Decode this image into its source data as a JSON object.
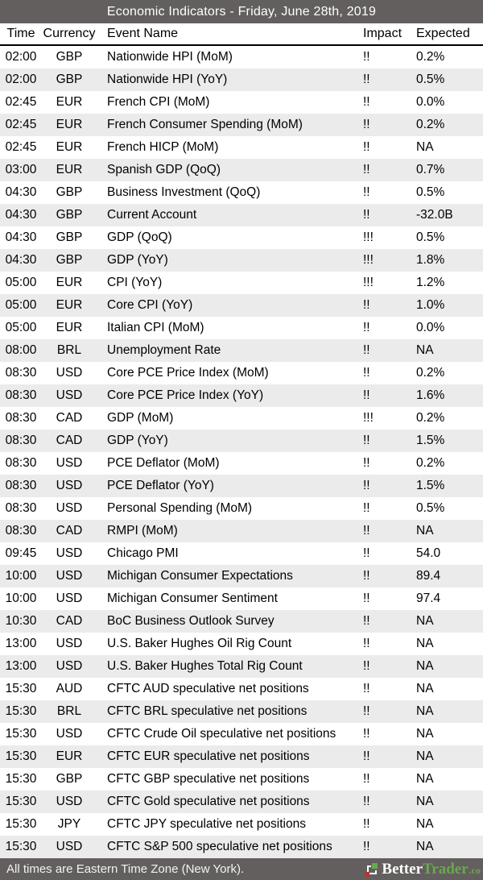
{
  "title_bar": {
    "title": "Economic Indicators - Friday, June 28th, 2019"
  },
  "table": {
    "columns": [
      "Time",
      "Currency",
      "Event Name",
      "Impact",
      "Expected"
    ],
    "rows": [
      {
        "time": "02:00",
        "currency": "GBP",
        "event": "Nationwide HPI (MoM)",
        "impact": "!!",
        "expected": "0.2%"
      },
      {
        "time": "02:00",
        "currency": "GBP",
        "event": "Nationwide HPI (YoY)",
        "impact": "!!",
        "expected": "0.5%"
      },
      {
        "time": "02:45",
        "currency": "EUR",
        "event": "French CPI (MoM)",
        "impact": "!!",
        "expected": "0.0%"
      },
      {
        "time": "02:45",
        "currency": "EUR",
        "event": "French Consumer Spending (MoM)",
        "impact": "!!",
        "expected": "0.2%"
      },
      {
        "time": "02:45",
        "currency": "EUR",
        "event": "French HICP (MoM)",
        "impact": "!!",
        "expected": "NA"
      },
      {
        "time": "03:00",
        "currency": "EUR",
        "event": "Spanish GDP (QoQ)",
        "impact": "!!",
        "expected": "0.7%"
      },
      {
        "time": "04:30",
        "currency": "GBP",
        "event": "Business Investment (QoQ)",
        "impact": "!!",
        "expected": "0.5%"
      },
      {
        "time": "04:30",
        "currency": "GBP",
        "event": "Current Account",
        "impact": "!!",
        "expected": "-32.0B"
      },
      {
        "time": "04:30",
        "currency": "GBP",
        "event": "GDP (QoQ)",
        "impact": "!!!",
        "expected": "0.5%"
      },
      {
        "time": "04:30",
        "currency": "GBP",
        "event": "GDP (YoY)",
        "impact": "!!!",
        "expected": "1.8%"
      },
      {
        "time": "05:00",
        "currency": "EUR",
        "event": "CPI (YoY)",
        "impact": "!!!",
        "expected": "1.2%"
      },
      {
        "time": "05:00",
        "currency": "EUR",
        "event": "Core CPI (YoY)",
        "impact": "!!",
        "expected": "1.0%"
      },
      {
        "time": "05:00",
        "currency": "EUR",
        "event": "Italian CPI (MoM)",
        "impact": "!!",
        "expected": "0.0%"
      },
      {
        "time": "08:00",
        "currency": "BRL",
        "event": "Unemployment Rate",
        "impact": "!!",
        "expected": "NA"
      },
      {
        "time": "08:30",
        "currency": "USD",
        "event": "Core PCE Price Index (MoM)",
        "impact": "!!",
        "expected": "0.2%"
      },
      {
        "time": "08:30",
        "currency": "USD",
        "event": "Core PCE Price Index (YoY)",
        "impact": "!!",
        "expected": "1.6%"
      },
      {
        "time": "08:30",
        "currency": "CAD",
        "event": "GDP (MoM)",
        "impact": "!!!",
        "expected": "0.2%"
      },
      {
        "time": "08:30",
        "currency": "CAD",
        "event": "GDP (YoY)",
        "impact": "!!",
        "expected": "1.5%"
      },
      {
        "time": "08:30",
        "currency": "USD",
        "event": "PCE Deflator (MoM)",
        "impact": "!!",
        "expected": "0.2%"
      },
      {
        "time": "08:30",
        "currency": "USD",
        "event": "PCE Deflator (YoY)",
        "impact": "!!",
        "expected": "1.5%"
      },
      {
        "time": "08:30",
        "currency": "USD",
        "event": "Personal Spending (MoM)",
        "impact": "!!",
        "expected": "0.5%"
      },
      {
        "time": "08:30",
        "currency": "CAD",
        "event": "RMPI (MoM)",
        "impact": "!!",
        "expected": "NA"
      },
      {
        "time": "09:45",
        "currency": "USD",
        "event": "Chicago PMI",
        "impact": "!!",
        "expected": "54.0"
      },
      {
        "time": "10:00",
        "currency": "USD",
        "event": "Michigan Consumer Expectations",
        "impact": "!!",
        "expected": "89.4"
      },
      {
        "time": "10:00",
        "currency": "USD",
        "event": "Michigan Consumer Sentiment",
        "impact": "!!",
        "expected": "97.4"
      },
      {
        "time": "10:30",
        "currency": "CAD",
        "event": "BoC Business Outlook Survey",
        "impact": "!!",
        "expected": "NA"
      },
      {
        "time": "13:00",
        "currency": "USD",
        "event": "U.S. Baker Hughes Oil Rig Count",
        "impact": "!!",
        "expected": "NA"
      },
      {
        "time": "13:00",
        "currency": "USD",
        "event": "U.S. Baker Hughes Total Rig Count",
        "impact": "!!",
        "expected": "NA"
      },
      {
        "time": "15:30",
        "currency": "AUD",
        "event": "CFTC AUD speculative net positions",
        "impact": "!!",
        "expected": "NA"
      },
      {
        "time": "15:30",
        "currency": "BRL",
        "event": "CFTC BRL speculative net positions",
        "impact": "!!",
        "expected": "NA"
      },
      {
        "time": "15:30",
        "currency": "USD",
        "event": "CFTC Crude Oil speculative net positions",
        "impact": "!!",
        "expected": "NA"
      },
      {
        "time": "15:30",
        "currency": "EUR",
        "event": "CFTC EUR speculative net positions",
        "impact": "!!",
        "expected": "NA"
      },
      {
        "time": "15:30",
        "currency": "GBP",
        "event": "CFTC GBP speculative net positions",
        "impact": "!!",
        "expected": "NA"
      },
      {
        "time": "15:30",
        "currency": "USD",
        "event": "CFTC Gold speculative net positions",
        "impact": "!!",
        "expected": "NA"
      },
      {
        "time": "15:30",
        "currency": "JPY",
        "event": "CFTC JPY speculative net positions",
        "impact": "!!",
        "expected": "NA"
      },
      {
        "time": "15:30",
        "currency": "USD",
        "event": "CFTC S&P 500 speculative net positions",
        "impact": "!!",
        "expected": "NA"
      }
    ]
  },
  "footer": {
    "note": "All times are Eastern Time Zone (New York).",
    "brand": {
      "part1": "Better",
      "part2": "Trader",
      "tld": ".co",
      "icon": "bettertrader-squares-icon"
    }
  },
  "colors": {
    "bar_background": "#635f5f",
    "alt_row_background": "#ebebeb",
    "header_border": "#000000",
    "brand_green": "#6aa84f",
    "brand_red": "#b5342d",
    "bar_text": "#f2f2f2"
  }
}
